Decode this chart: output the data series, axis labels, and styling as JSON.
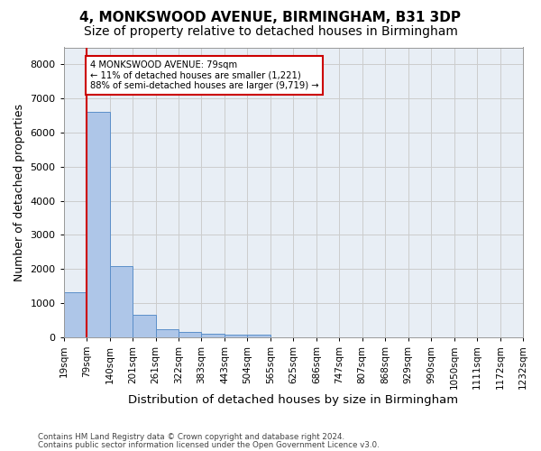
{
  "title": "4, MONKSWOOD AVENUE, BIRMINGHAM, B31 3DP",
  "subtitle": "Size of property relative to detached houses in Birmingham",
  "xlabel": "Distribution of detached houses by size in Birmingham",
  "ylabel": "Number of detached properties",
  "footnote1": "Contains HM Land Registry data © Crown copyright and database right 2024.",
  "footnote2": "Contains public sector information licensed under the Open Government Licence v3.0.",
  "annotation_line1": "4 MONKSWOOD AVENUE: 79sqm",
  "annotation_line2": "← 11% of detached houses are smaller (1,221)",
  "annotation_line3": "88% of semi-detached houses are larger (9,719) →",
  "bin_labels": [
    "19sqm",
    "79sqm",
    "140sqm",
    "201sqm",
    "261sqm",
    "322sqm",
    "383sqm",
    "443sqm",
    "504sqm",
    "565sqm",
    "625sqm",
    "686sqm",
    "747sqm",
    "807sqm",
    "868sqm",
    "929sqm",
    "990sqm",
    "1050sqm",
    "1111sqm",
    "1172sqm",
    "1232sqm"
  ],
  "bar_heights": [
    1310,
    6620,
    2080,
    640,
    240,
    140,
    100,
    60,
    60,
    0,
    0,
    0,
    0,
    0,
    0,
    0,
    0,
    0,
    0,
    0
  ],
  "bar_color": "#aec6e8",
  "bar_edge_color": "#5b8fc9",
  "vline_color": "#cc0000",
  "property_bin_index": 1,
  "ylim": [
    0,
    8500
  ],
  "yticks": [
    0,
    1000,
    2000,
    3000,
    4000,
    5000,
    6000,
    7000,
    8000
  ],
  "grid_color": "#cccccc",
  "bg_color": "#e8eef5",
  "title_fontsize": 11,
  "subtitle_fontsize": 10,
  "axis_label_fontsize": 9,
  "tick_fontsize": 7.5
}
